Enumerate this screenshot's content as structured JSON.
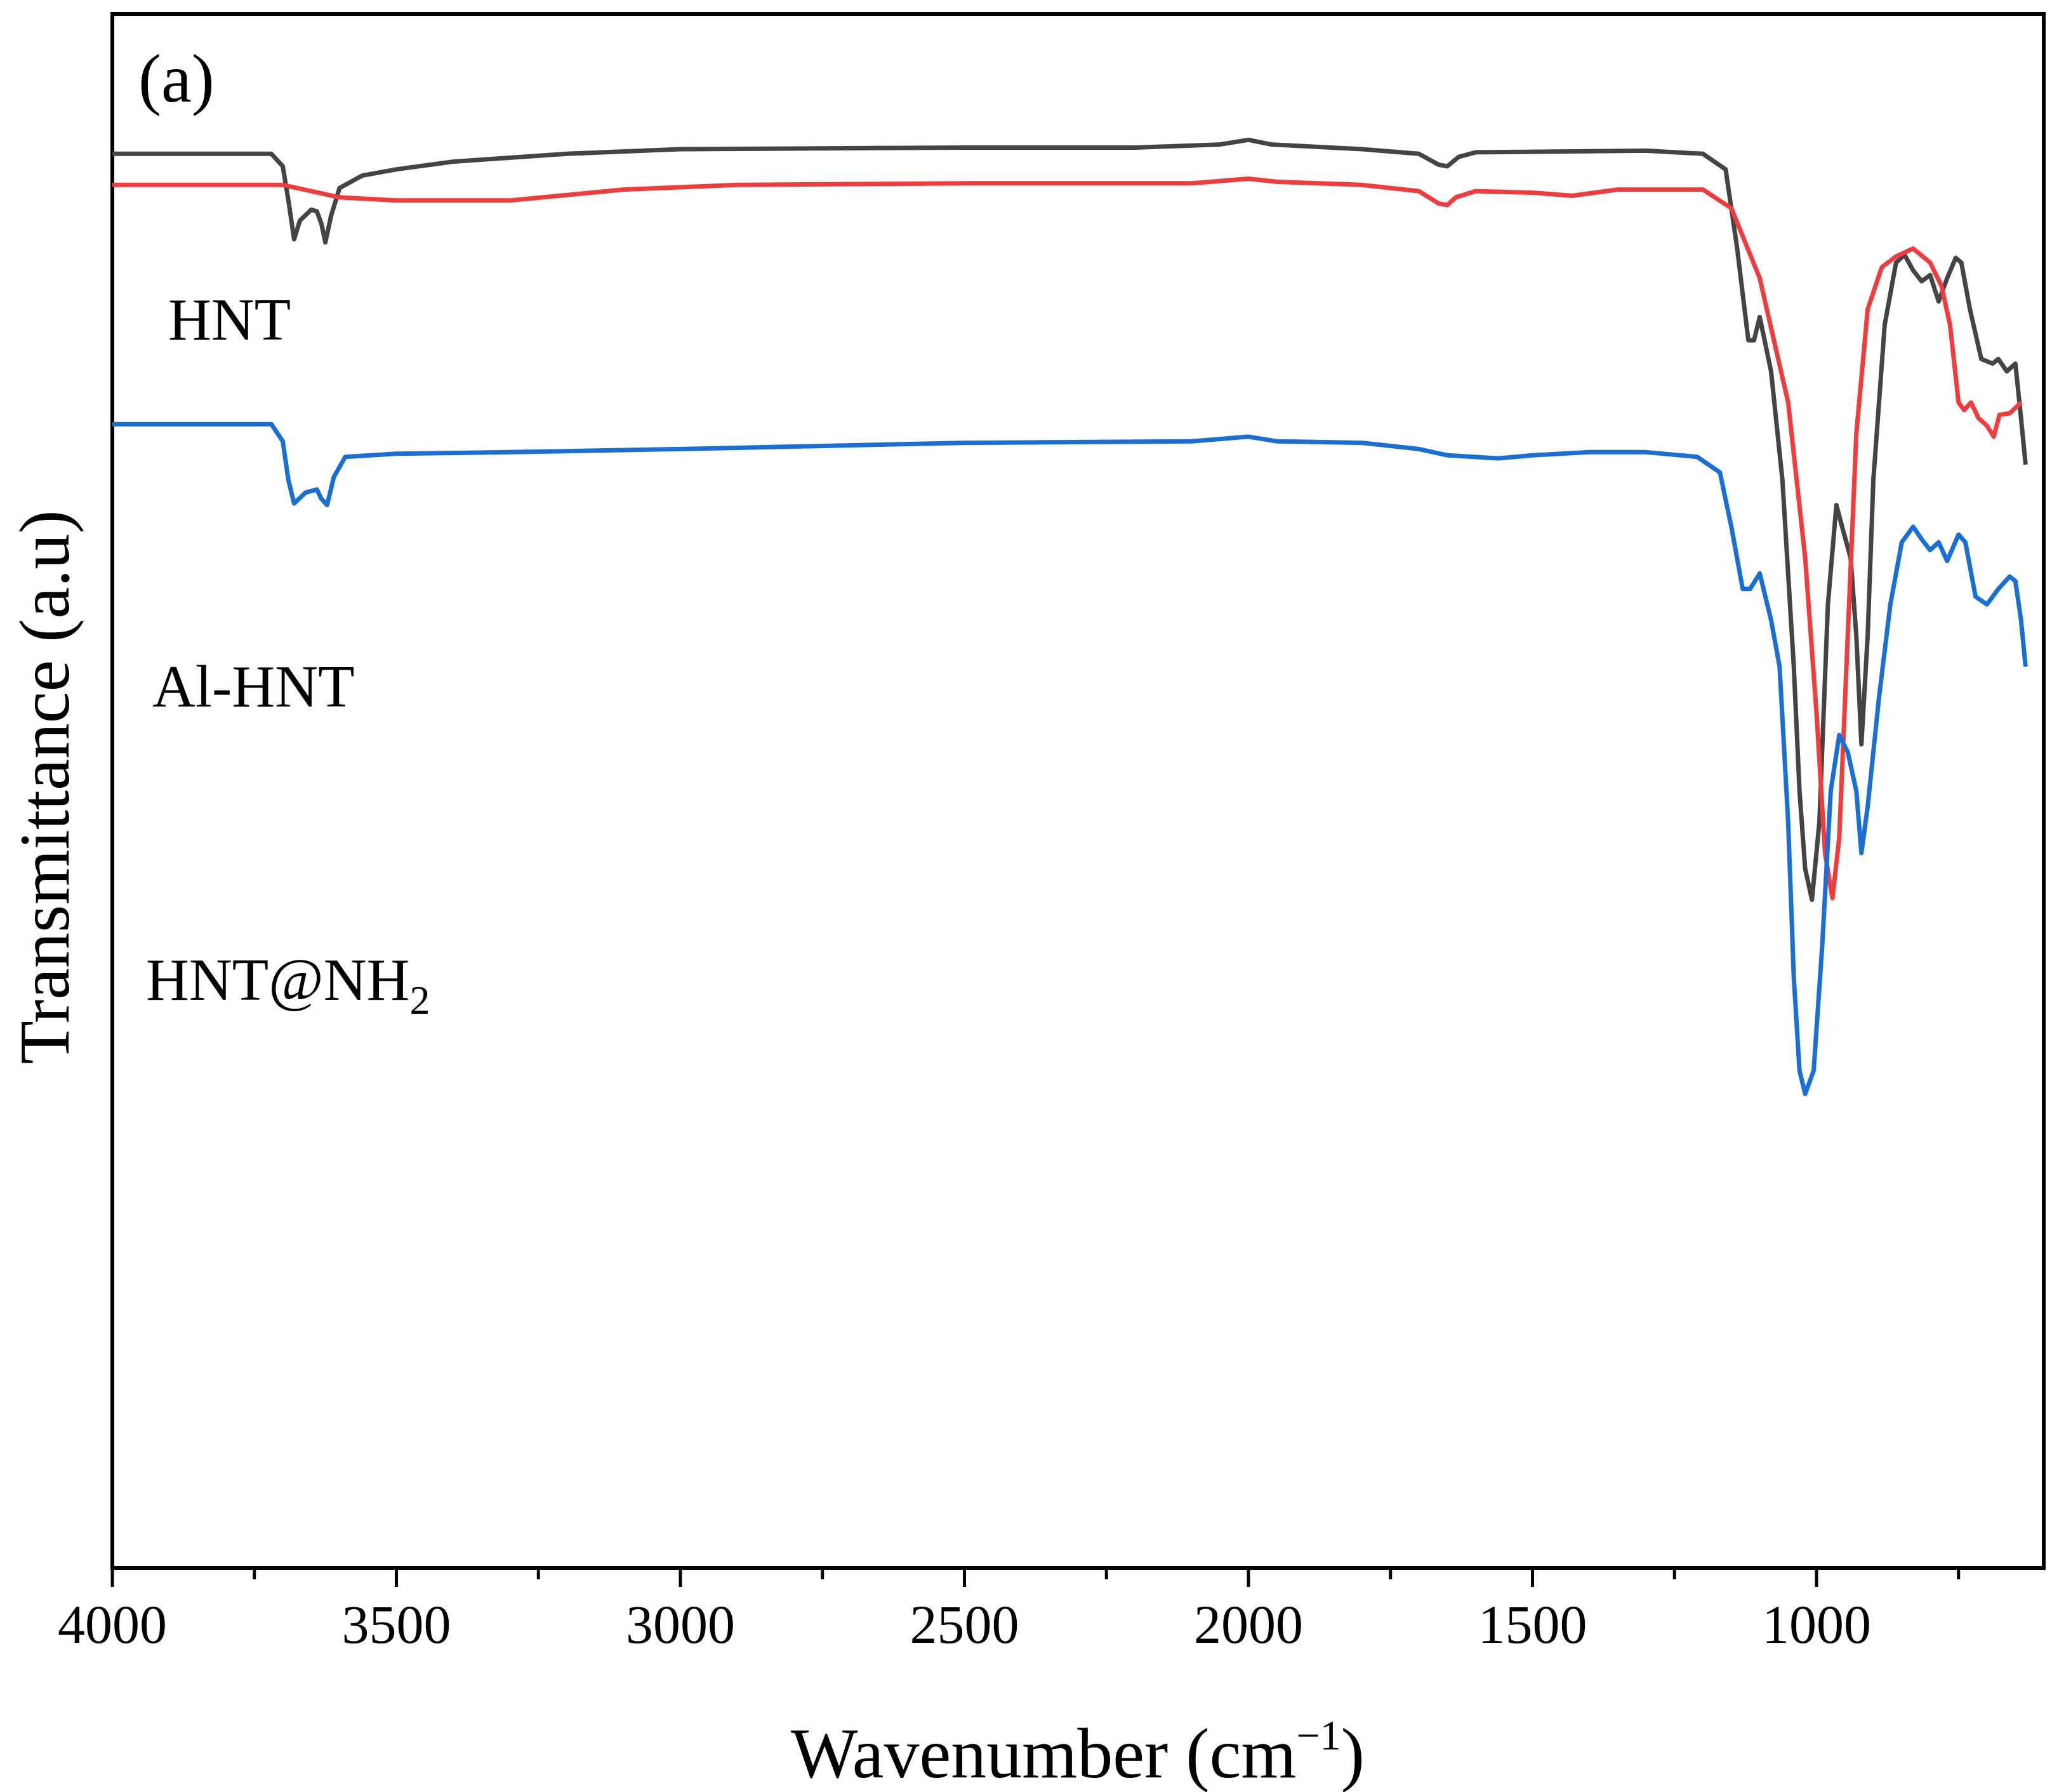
{
  "chart_data": {
    "type": "line",
    "panel_label": "(a)",
    "xlabel": {
      "text": "Wavenumber (cm",
      "sup": "−1",
      "close": ")"
    },
    "ylabel": "Transmittance (a.u)",
    "xlim": [
      4000,
      600
    ],
    "x_ticks": [
      4000,
      3500,
      3000,
      2500,
      2000,
      1500,
      1000
    ],
    "x_tick_labels": [
      "4000",
      "3500",
      "3000",
      "2500",
      "2000",
      "1500",
      "1000"
    ],
    "y_ticks_shown": false,
    "series": [
      {
        "name": "HNT",
        "label": "HNT",
        "color": "#444444",
        "points": [
          [
            4000,
            0.09
          ],
          [
            3720,
            0.09
          ],
          [
            3700,
            0.098
          ],
          [
            3690,
            0.12
          ],
          [
            3680,
            0.145
          ],
          [
            3670,
            0.133
          ],
          [
            3650,
            0.126
          ],
          [
            3640,
            0.127
          ],
          [
            3632,
            0.135
          ],
          [
            3625,
            0.147
          ],
          [
            3615,
            0.13
          ],
          [
            3600,
            0.112
          ],
          [
            3560,
            0.104
          ],
          [
            3500,
            0.1
          ],
          [
            3400,
            0.095
          ],
          [
            3200,
            0.09
          ],
          [
            3000,
            0.087
          ],
          [
            2500,
            0.086
          ],
          [
            2200,
            0.086
          ],
          [
            2050,
            0.084
          ],
          [
            2000,
            0.081
          ],
          [
            1960,
            0.084
          ],
          [
            1800,
            0.087
          ],
          [
            1700,
            0.09
          ],
          [
            1665,
            0.097
          ],
          [
            1650,
            0.098
          ],
          [
            1630,
            0.092
          ],
          [
            1600,
            0.089
          ],
          [
            1300,
            0.088
          ],
          [
            1200,
            0.09
          ],
          [
            1160,
            0.1
          ],
          [
            1140,
            0.15
          ],
          [
            1120,
            0.21
          ],
          [
            1110,
            0.21
          ],
          [
            1100,
            0.195
          ],
          [
            1080,
            0.23
          ],
          [
            1060,
            0.3
          ],
          [
            1040,
            0.42
          ],
          [
            1030,
            0.5
          ],
          [
            1020,
            0.55
          ],
          [
            1008,
            0.57
          ],
          [
            995,
            0.52
          ],
          [
            980,
            0.38
          ],
          [
            965,
            0.316
          ],
          [
            955,
            0.33
          ],
          [
            940,
            0.35
          ],
          [
            930,
            0.4
          ],
          [
            921,
            0.47
          ],
          [
            910,
            0.4
          ],
          [
            900,
            0.3
          ],
          [
            880,
            0.2
          ],
          [
            860,
            0.16
          ],
          [
            845,
            0.155
          ],
          [
            830,
            0.165
          ],
          [
            815,
            0.172
          ],
          [
            800,
            0.168
          ],
          [
            785,
            0.185
          ],
          [
            770,
            0.17
          ],
          [
            755,
            0.157
          ],
          [
            745,
            0.16
          ],
          [
            730,
            0.19
          ],
          [
            710,
            0.222
          ],
          [
            690,
            0.225
          ],
          [
            680,
            0.222
          ],
          [
            665,
            0.23
          ],
          [
            650,
            0.225
          ],
          [
            640,
            0.26
          ],
          [
            632,
            0.29
          ]
        ]
      },
      {
        "name": "Al-HNT",
        "label": "Al-HNT",
        "color": "#f03c3c",
        "points": [
          [
            4000,
            0.11
          ],
          [
            3700,
            0.11
          ],
          [
            3600,
            0.118
          ],
          [
            3500,
            0.12
          ],
          [
            3300,
            0.12
          ],
          [
            3100,
            0.113
          ],
          [
            2900,
            0.11
          ],
          [
            2500,
            0.109
          ],
          [
            2100,
            0.109
          ],
          [
            2000,
            0.106
          ],
          [
            1950,
            0.108
          ],
          [
            1800,
            0.11
          ],
          [
            1700,
            0.114
          ],
          [
            1665,
            0.122
          ],
          [
            1650,
            0.123
          ],
          [
            1635,
            0.118
          ],
          [
            1600,
            0.114
          ],
          [
            1500,
            0.115
          ],
          [
            1430,
            0.117
          ],
          [
            1350,
            0.113
          ],
          [
            1200,
            0.113
          ],
          [
            1150,
            0.125
          ],
          [
            1100,
            0.17
          ],
          [
            1050,
            0.25
          ],
          [
            1020,
            0.35
          ],
          [
            1000,
            0.45
          ],
          [
            985,
            0.54
          ],
          [
            972,
            0.569
          ],
          [
            960,
            0.53
          ],
          [
            945,
            0.4
          ],
          [
            930,
            0.27
          ],
          [
            910,
            0.19
          ],
          [
            885,
            0.163
          ],
          [
            860,
            0.156
          ],
          [
            830,
            0.151
          ],
          [
            800,
            0.16
          ],
          [
            780,
            0.175
          ],
          [
            765,
            0.2
          ],
          [
            750,
            0.25
          ],
          [
            740,
            0.255
          ],
          [
            728,
            0.25
          ],
          [
            715,
            0.26
          ],
          [
            700,
            0.265
          ],
          [
            688,
            0.272
          ],
          [
            678,
            0.258
          ],
          [
            660,
            0.257
          ],
          [
            640,
            0.25
          ]
        ]
      },
      {
        "name": "HNT@NH2",
        "label": "HNT@NH",
        "label_sub": "2",
        "color": "#1a6fd6",
        "points": [
          [
            4000,
            0.264
          ],
          [
            3720,
            0.264
          ],
          [
            3700,
            0.275
          ],
          [
            3690,
            0.3
          ],
          [
            3680,
            0.315
          ],
          [
            3660,
            0.308
          ],
          [
            3640,
            0.306
          ],
          [
            3632,
            0.312
          ],
          [
            3622,
            0.316
          ],
          [
            3610,
            0.298
          ],
          [
            3590,
            0.285
          ],
          [
            3500,
            0.283
          ],
          [
            3300,
            0.282
          ],
          [
            3000,
            0.28
          ],
          [
            2500,
            0.276
          ],
          [
            2100,
            0.275
          ],
          [
            2000,
            0.272
          ],
          [
            1950,
            0.275
          ],
          [
            1800,
            0.276
          ],
          [
            1700,
            0.28
          ],
          [
            1650,
            0.284
          ],
          [
            1560,
            0.286
          ],
          [
            1500,
            0.284
          ],
          [
            1400,
            0.282
          ],
          [
            1300,
            0.282
          ],
          [
            1210,
            0.285
          ],
          [
            1170,
            0.295
          ],
          [
            1150,
            0.33
          ],
          [
            1130,
            0.37
          ],
          [
            1117,
            0.37
          ],
          [
            1100,
            0.36
          ],
          [
            1080,
            0.39
          ],
          [
            1065,
            0.42
          ],
          [
            1050,
            0.52
          ],
          [
            1040,
            0.62
          ],
          [
            1030,
            0.68
          ],
          [
            1020,
            0.695
          ],
          [
            1005,
            0.68
          ],
          [
            990,
            0.6
          ],
          [
            975,
            0.5
          ],
          [
            960,
            0.464
          ],
          [
            945,
            0.475
          ],
          [
            930,
            0.5
          ],
          [
            921,
            0.54
          ],
          [
            910,
            0.51
          ],
          [
            890,
            0.44
          ],
          [
            870,
            0.38
          ],
          [
            850,
            0.34
          ],
          [
            830,
            0.33
          ],
          [
            815,
            0.338
          ],
          [
            800,
            0.345
          ],
          [
            785,
            0.34
          ],
          [
            770,
            0.352
          ],
          [
            750,
            0.335
          ],
          [
            738,
            0.34
          ],
          [
            720,
            0.375
          ],
          [
            700,
            0.38
          ],
          [
            680,
            0.37
          ],
          [
            660,
            0.362
          ],
          [
            650,
            0.365
          ],
          [
            640,
            0.39
          ],
          [
            632,
            0.42
          ]
        ]
      }
    ]
  }
}
